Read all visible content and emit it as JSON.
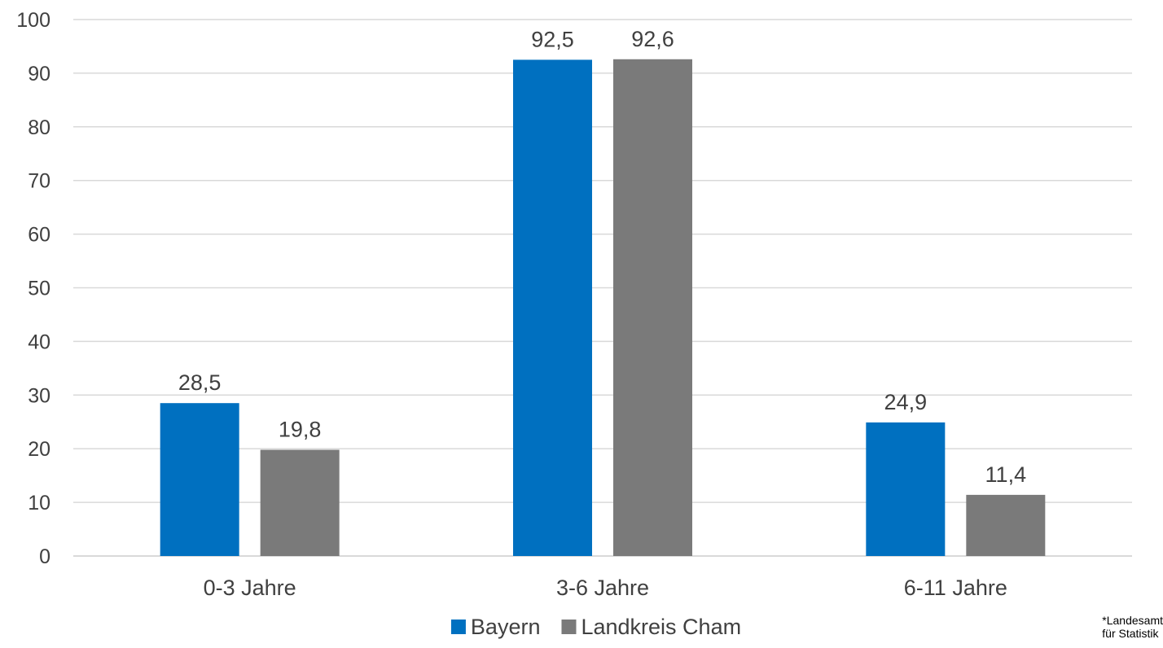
{
  "chart_data": {
    "type": "bar",
    "title": "",
    "xlabel": "",
    "ylabel": "",
    "categories": [
      "0-3 Jahre",
      "3-6 Jahre",
      "6-11 Jahre"
    ],
    "series": [
      {
        "name": "Bayern",
        "values": [
          28.5,
          92.5,
          24.9
        ],
        "labels": [
          "28,5",
          "92,5",
          "24,9"
        ],
        "color": "#0070C0"
      },
      {
        "name": "Landkreis Cham",
        "values": [
          19.8,
          92.6,
          11.4
        ],
        "labels": [
          "19,8",
          "92,6",
          "11,4"
        ],
        "color": "#7A7A7A"
      }
    ],
    "ylim": [
      0,
      100
    ],
    "yticks": [
      0,
      10,
      20,
      30,
      40,
      50,
      60,
      70,
      80,
      90,
      100
    ],
    "grid": true,
    "legend_position": "bottom"
  },
  "footnote": {
    "line1": "*Landesamt",
    "line2": "für Statistik"
  },
  "colors": {
    "grid": "#D9D9D9",
    "axis": "#D9D9D9",
    "text": "#404040"
  }
}
